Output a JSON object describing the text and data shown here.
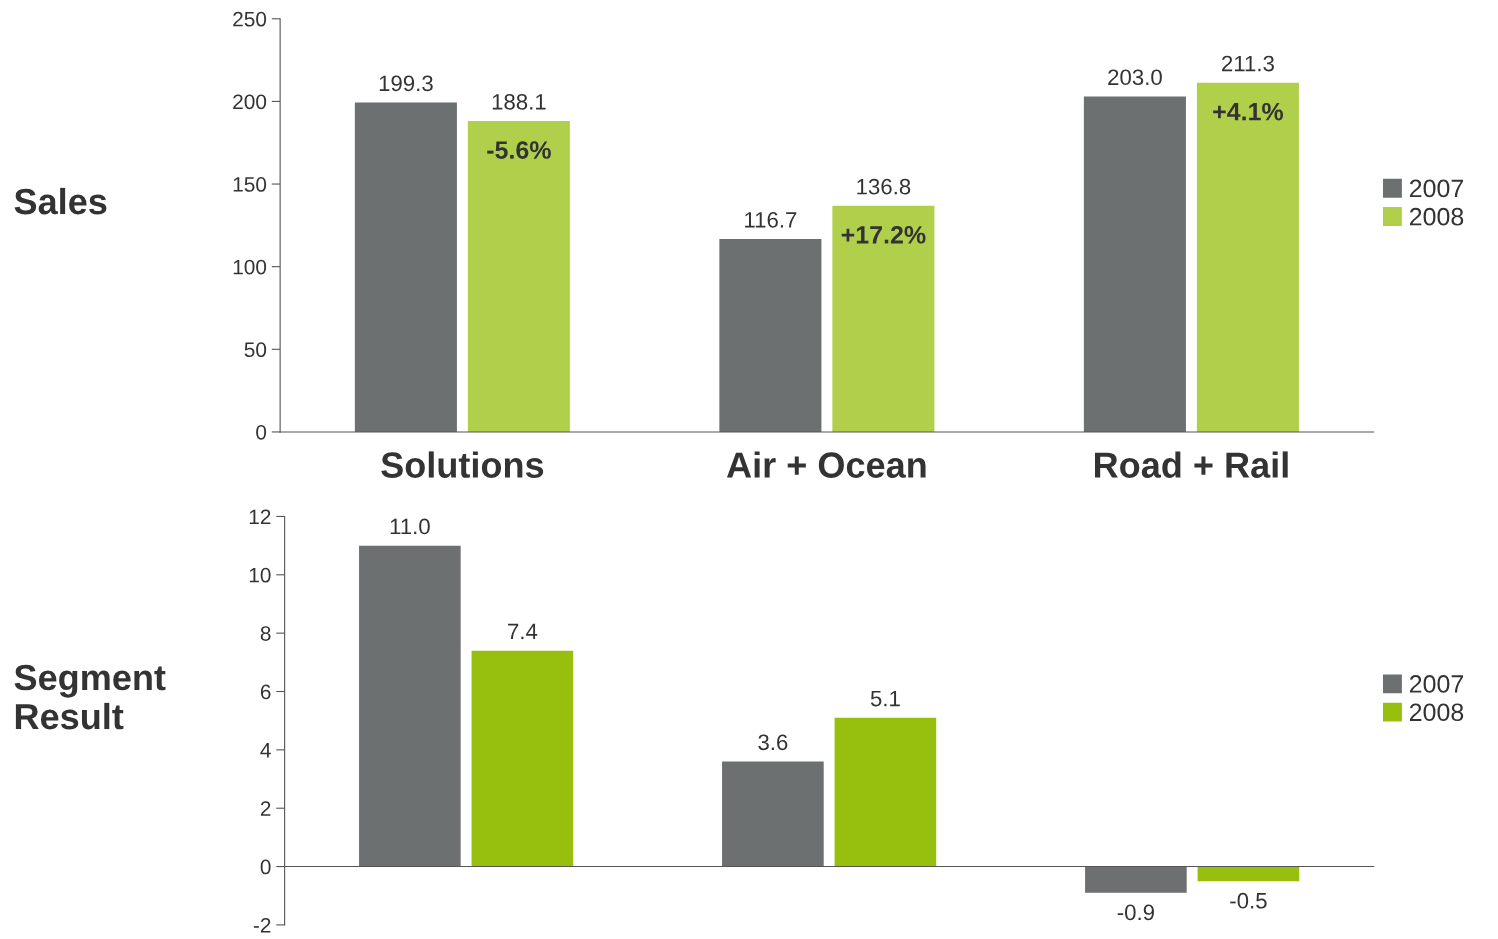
{
  "chart_data": [
    {
      "type": "bar",
      "ylabel": "Sales",
      "categories": [
        "Solutions",
        "Air + Ocean",
        "Road + Rail"
      ],
      "series": [
        {
          "name": "2007",
          "color": "#6d7070",
          "values": [
            199.3,
            116.7,
            203.0
          ],
          "value_labels": [
            "199.3",
            "116.7",
            "203.0"
          ]
        },
        {
          "name": "2008",
          "color": "#b0d04c",
          "values": [
            188.1,
            136.8,
            211.3
          ],
          "value_labels": [
            "188.1",
            "136.8",
            "211.3"
          ]
        }
      ],
      "ylim": [
        0,
        250
      ],
      "yticks": [
        0,
        50,
        100,
        150,
        200,
        250
      ],
      "legend": "right",
      "annotations": [
        "-5.6%",
        "+17.2%",
        "+4.1%"
      ]
    },
    {
      "type": "bar",
      "ylabel": "Segment\nResult",
      "categories": [
        null,
        null,
        null
      ],
      "series": [
        {
          "name": "2007",
          "color": "#6d7070",
          "values": [
            11.0,
            3.6,
            -0.9
          ],
          "value_labels": [
            "11.0",
            "3.6",
            "-0.9"
          ]
        },
        {
          "name": "2008",
          "color": "#97bf0d",
          "values": [
            7.4,
            5.1,
            -0.5
          ],
          "value_labels": [
            "7.4",
            "5.1",
            "-0.5"
          ]
        }
      ],
      "ylim": [
        -2,
        12
      ],
      "yticks": [
        -2,
        0,
        2,
        4,
        6,
        8,
        10,
        12
      ],
      "legend": "right",
      "tick_labels": "y"
    }
  ]
}
